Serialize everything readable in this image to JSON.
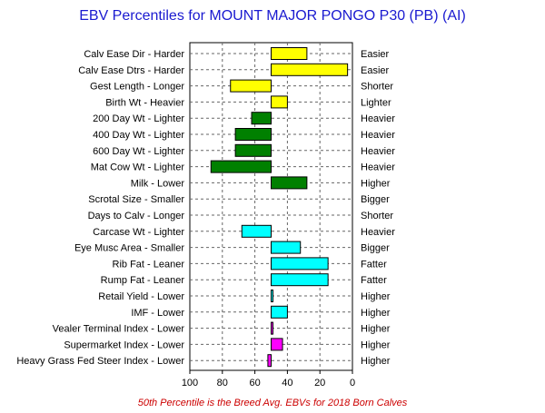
{
  "chart_data": {
    "type": "bar",
    "title": "EBV Percentiles for MOUNT MAJOR PONGO P30 (PB) (AI)",
    "footnote": "50th Percentile is the Breed Avg. EBVs for 2018 Born Calves",
    "xlim": [
      100,
      0
    ],
    "x_ticks": [
      "100",
      "80",
      "60",
      "40",
      "20",
      "0"
    ],
    "grid": true,
    "baseline": 50,
    "categories": [
      "Calv Ease Dir - Harder",
      "Calv Ease Dtrs - Harder",
      "Gest Length - Longer",
      "Birth Wt - Heavier",
      "200 Day Wt - Lighter",
      "400 Day Wt - Lighter",
      "600 Day Wt - Lighter",
      "Mat Cow Wt - Lighter",
      "Milk - Lower",
      "Scrotal Size - Smaller",
      "Days to Calv - Longer",
      "Carcase Wt - Lighter",
      "Eye Musc Area - Smaller",
      "Rib Fat - Leaner",
      "Rump Fat - Leaner",
      "Retail Yield - Lower",
      "IMF - Lower",
      "Vealer Terminal Index - Lower",
      "Supermarket Index - Lower",
      "Heavy Grass Fed Steer Index - Lower"
    ],
    "right_labels": [
      "Easier",
      "Easier",
      "Shorter",
      "Lighter",
      "Heavier",
      "Heavier",
      "Heavier",
      "Heavier",
      "Higher",
      "Bigger",
      "Shorter",
      "Heavier",
      "Bigger",
      "Fatter",
      "Fatter",
      "Higher",
      "Higher",
      "Higher",
      "Higher",
      "Higher"
    ],
    "values": [
      28,
      3,
      75,
      40,
      62,
      72,
      72,
      87,
      28,
      null,
      null,
      68,
      32,
      15,
      15,
      49,
      40,
      49,
      43,
      52
    ],
    "colors": [
      "#ffff00",
      "#ffff00",
      "#ffff00",
      "#ffff00",
      "#008000",
      "#008000",
      "#008000",
      "#008000",
      "#008000",
      null,
      null,
      "#00ffff",
      "#00ffff",
      "#00ffff",
      "#00ffff",
      "#00ffff",
      "#00ffff",
      "#ff00ff",
      "#ff00ff",
      "#ff00ff"
    ]
  }
}
